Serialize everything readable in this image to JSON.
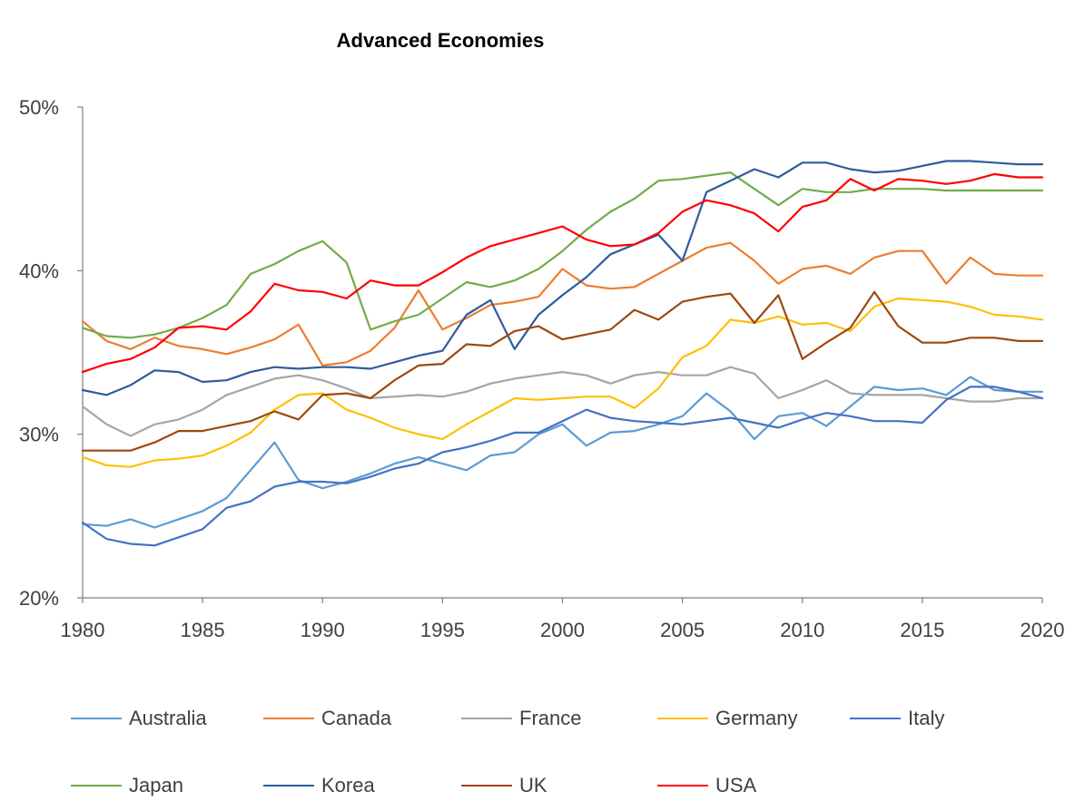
{
  "chart_data": {
    "type": "line",
    "title": "Advanced Economies",
    "xlabel": "",
    "ylabel": "",
    "xlim": [
      1980,
      2020
    ],
    "ylim": [
      20,
      50
    ],
    "yticks": [
      20,
      30,
      40,
      50
    ],
    "ytick_labels": [
      "20%",
      "30%",
      "40%",
      "50%"
    ],
    "xticks": [
      1980,
      1985,
      1990,
      1995,
      2000,
      2005,
      2010,
      2015,
      2020
    ],
    "xtick_labels": [
      "1980",
      "1985",
      "1990",
      "1995",
      "2000",
      "2005",
      "2010",
      "2015",
      "2020"
    ],
    "grid": false,
    "legend_position": "bottom",
    "x": [
      1980,
      1981,
      1982,
      1983,
      1984,
      1985,
      1986,
      1987,
      1988,
      1989,
      1990,
      1991,
      1992,
      1993,
      1994,
      1995,
      1996,
      1997,
      1998,
      1999,
      2000,
      2001,
      2002,
      2003,
      2004,
      2005,
      2006,
      2007,
      2008,
      2009,
      2010,
      2011,
      2012,
      2013,
      2014,
      2015,
      2016,
      2017,
      2018,
      2019,
      2020
    ],
    "series": [
      {
        "name": "Australia",
        "color": "#5B9BD5",
        "values": [
          24.5,
          24.4,
          24.8,
          24.3,
          24.8,
          25.3,
          26.1,
          27.8,
          29.5,
          27.2,
          26.7,
          27.1,
          27.6,
          28.2,
          28.6,
          28.2,
          27.8,
          28.7,
          28.9,
          30.0,
          30.6,
          29.3,
          30.1,
          30.2,
          30.6,
          31.1,
          32.5,
          31.4,
          29.7,
          31.1,
          31.3,
          30.5,
          31.7,
          32.9,
          32.7,
          32.8,
          32.4,
          33.5,
          32.7,
          32.6,
          32.6
        ]
      },
      {
        "name": "Canada",
        "color": "#ED7D31",
        "values": [
          36.9,
          35.7,
          35.2,
          35.9,
          35.4,
          35.2,
          34.9,
          35.3,
          35.8,
          36.7,
          34.2,
          34.4,
          35.1,
          36.5,
          38.8,
          36.4,
          37.1,
          37.9,
          38.1,
          38.4,
          40.1,
          39.1,
          38.9,
          39.0,
          39.8,
          40.6,
          41.4,
          41.7,
          40.6,
          39.2,
          40.1,
          40.3,
          39.8,
          40.8,
          41.2,
          41.2,
          39.2,
          40.8,
          39.8,
          39.7,
          39.7
        ]
      },
      {
        "name": "France",
        "color": "#A5A5A5",
        "values": [
          31.7,
          30.6,
          29.9,
          30.6,
          30.9,
          31.5,
          32.4,
          32.9,
          33.4,
          33.6,
          33.3,
          32.8,
          32.2,
          32.3,
          32.4,
          32.3,
          32.6,
          33.1,
          33.4,
          33.6,
          33.8,
          33.6,
          33.1,
          33.6,
          33.8,
          33.6,
          33.6,
          34.1,
          33.7,
          32.2,
          32.7,
          33.3,
          32.5,
          32.4,
          32.4,
          32.4,
          32.2,
          32.0,
          32.0,
          32.2,
          32.2
        ]
      },
      {
        "name": "Germany",
        "color": "#FFC000",
        "values": [
          28.6,
          28.1,
          28.0,
          28.4,
          28.5,
          28.7,
          29.3,
          30.1,
          31.5,
          32.4,
          32.5,
          31.5,
          31.0,
          30.4,
          30.0,
          29.7,
          30.6,
          31.4,
          32.2,
          32.1,
          32.2,
          32.3,
          32.3,
          31.6,
          32.8,
          34.7,
          35.4,
          37.0,
          36.8,
          37.2,
          36.7,
          36.8,
          36.3,
          37.8,
          38.3,
          38.2,
          38.1,
          37.8,
          37.3,
          37.2,
          37.0
        ]
      },
      {
        "name": "Italy",
        "color": "#4472C4",
        "values": [
          24.6,
          23.6,
          23.3,
          23.2,
          23.7,
          24.2,
          25.5,
          25.9,
          26.8,
          27.1,
          27.1,
          27.0,
          27.4,
          27.9,
          28.2,
          28.9,
          29.2,
          29.6,
          30.1,
          30.1,
          30.8,
          31.5,
          31.0,
          30.8,
          30.7,
          30.6,
          30.8,
          31.0,
          30.7,
          30.4,
          30.9,
          31.3,
          31.1,
          30.8,
          30.8,
          30.7,
          32.1,
          32.9,
          32.9,
          32.6,
          32.2
        ]
      },
      {
        "name": "Japan",
        "color": "#70AD47",
        "values": [
          36.5,
          36.0,
          35.9,
          36.1,
          36.5,
          37.1,
          37.9,
          39.8,
          40.4,
          41.2,
          41.8,
          40.5,
          36.4,
          36.9,
          37.3,
          38.3,
          39.3,
          39.0,
          39.4,
          40.1,
          41.2,
          42.5,
          43.6,
          44.4,
          45.5,
          45.6,
          45.8,
          46.0,
          45.0,
          44.0,
          45.0,
          44.8,
          44.8,
          45.0,
          45.0,
          45.0,
          44.9,
          44.9,
          44.9,
          44.9,
          44.9
        ]
      },
      {
        "name": "Korea",
        "color": "#2E5C9A",
        "values": [
          32.7,
          32.4,
          33.0,
          33.9,
          33.8,
          33.2,
          33.3,
          33.8,
          34.1,
          34.0,
          34.1,
          34.1,
          34.0,
          34.4,
          34.8,
          35.1,
          37.3,
          38.2,
          35.2,
          37.3,
          38.5,
          39.6,
          41.0,
          41.6,
          42.2,
          40.6,
          44.8,
          45.5,
          46.2,
          45.7,
          46.6,
          46.6,
          46.2,
          46.0,
          46.1,
          46.4,
          46.7,
          46.7,
          46.6,
          46.5,
          46.5
        ]
      },
      {
        "name": "UK",
        "color": "#9E480E",
        "values": [
          29.0,
          29.0,
          29.0,
          29.5,
          30.2,
          30.2,
          30.5,
          30.8,
          31.4,
          30.9,
          32.4,
          32.5,
          32.2,
          33.3,
          34.2,
          34.3,
          35.5,
          35.4,
          36.3,
          36.6,
          35.8,
          36.1,
          36.4,
          37.6,
          37.0,
          38.1,
          38.4,
          38.6,
          36.8,
          38.5,
          34.6,
          35.6,
          36.5,
          38.7,
          36.6,
          35.6,
          35.6,
          35.9,
          35.9,
          35.7,
          35.7
        ]
      },
      {
        "name": "USA",
        "color": "#FF0000",
        "values": [
          33.8,
          34.3,
          34.6,
          35.3,
          36.5,
          36.6,
          36.4,
          37.5,
          39.2,
          38.8,
          38.7,
          38.3,
          39.4,
          39.1,
          39.1,
          39.9,
          40.8,
          41.5,
          41.9,
          42.3,
          42.7,
          41.9,
          41.5,
          41.6,
          42.3,
          43.6,
          44.3,
          44.0,
          43.5,
          42.4,
          43.9,
          44.3,
          45.6,
          44.9,
          45.6,
          45.5,
          45.3,
          45.5,
          45.9,
          45.7,
          45.7
        ]
      }
    ]
  }
}
